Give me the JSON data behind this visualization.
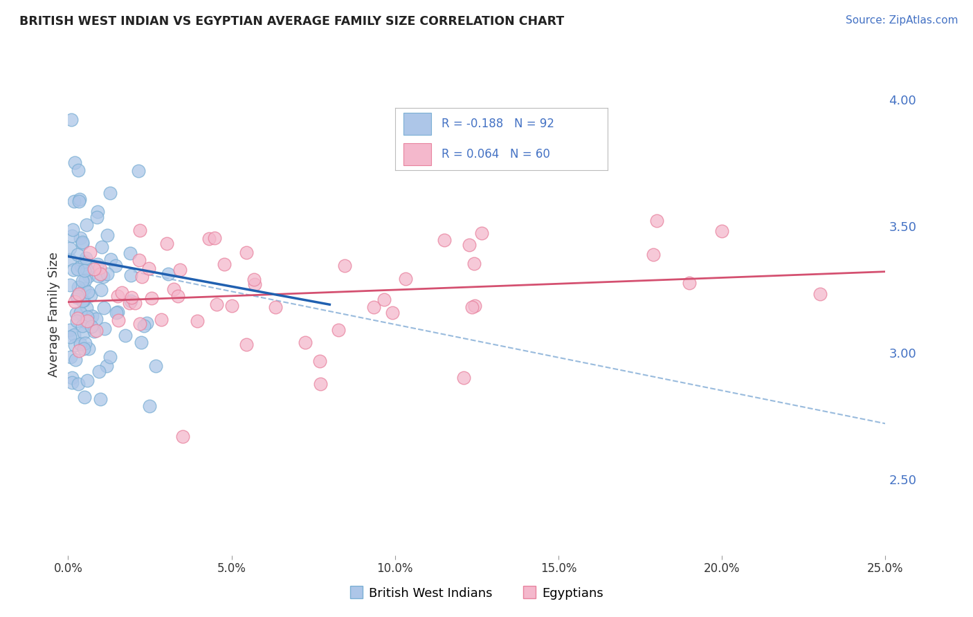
{
  "title": "BRITISH WEST INDIAN VS EGYPTIAN AVERAGE FAMILY SIZE CORRELATION CHART",
  "source": "Source: ZipAtlas.com",
  "ylabel": "Average Family Size",
  "legend_label1": "British West Indians",
  "legend_label2": "Egyptians",
  "R1": -0.188,
  "N1": 92,
  "R2": 0.064,
  "N2": 60,
  "color1": "#adc6e8",
  "color2": "#f4b8cc",
  "color1_edge": "#7aafd4",
  "color2_edge": "#e8829e",
  "trendline1_color": "#2060b0",
  "trendline2_color": "#d45070",
  "dashed_color": "#99bbdd",
  "xlim": [
    0.0,
    0.25
  ],
  "ylim": [
    2.2,
    4.1
  ],
  "yticks_right": [
    2.5,
    3.0,
    3.5,
    4.0
  ],
  "background_color": "#ffffff",
  "plot_bg": "#ffffff",
  "grid_color": "#cccccc",
  "title_color": "#222222",
  "source_color": "#4472c4",
  "axis_color": "#4472c4",
  "blue_line_x": [
    0.0,
    0.08
  ],
  "blue_line_y": [
    3.38,
    3.19
  ],
  "pink_line_x": [
    0.0,
    0.25
  ],
  "pink_line_y": [
    3.2,
    3.32
  ],
  "dashed_line_x": [
    0.02,
    0.25
  ],
  "dashed_line_y": [
    3.32,
    2.72
  ]
}
